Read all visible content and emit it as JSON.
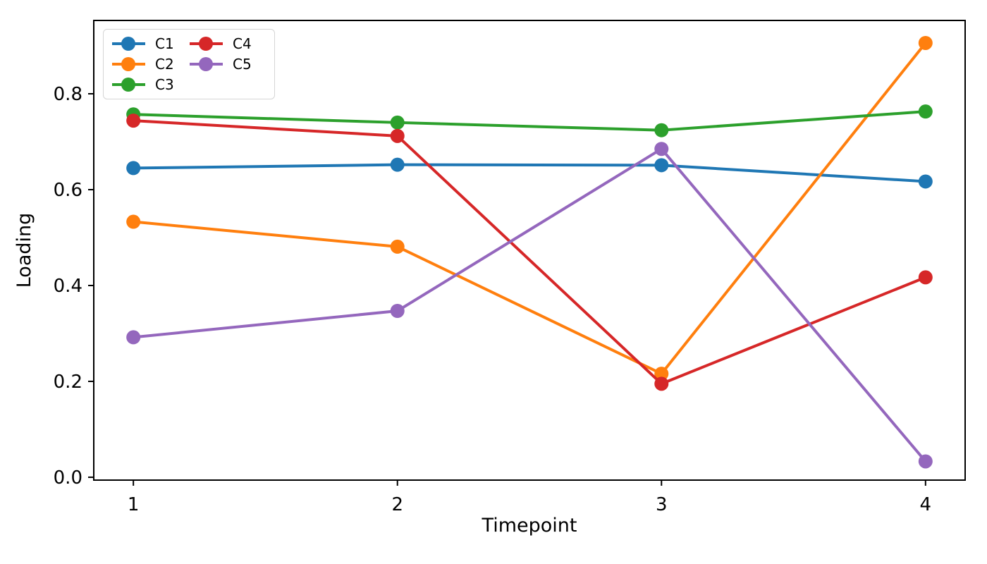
{
  "figure": {
    "background": "#ffffff",
    "text_color": "#000000",
    "spine_color": "#000000"
  },
  "chart_data": {
    "type": "line",
    "title": "",
    "xlabel": "Timepoint",
    "ylabel": "Loading",
    "x": [
      1,
      2,
      3,
      4
    ],
    "series": [
      {
        "name": "C1",
        "color": "#1f77b4",
        "values": [
          0.645,
          0.652,
          0.651,
          0.617
        ]
      },
      {
        "name": "C2",
        "color": "#ff7f0e",
        "values": [
          0.533,
          0.481,
          0.216,
          0.906
        ]
      },
      {
        "name": "C3",
        "color": "#2ca02c",
        "values": [
          0.757,
          0.74,
          0.724,
          0.763
        ]
      },
      {
        "name": "C4",
        "color": "#d62728",
        "values": [
          0.744,
          0.712,
          0.195,
          0.417
        ]
      },
      {
        "name": "C5",
        "color": "#9467bd",
        "values": [
          0.292,
          0.347,
          0.685,
          0.033
        ]
      }
    ],
    "xlim": [
      0.85,
      4.15
    ],
    "ylim": [
      -0.006,
      0.953
    ],
    "xticks": {
      "positions": [
        1,
        2,
        3,
        4
      ],
      "labels": [
        "1",
        "2",
        "3",
        "4"
      ]
    },
    "yticks": {
      "positions": [
        0.0,
        0.2,
        0.4,
        0.6,
        0.8
      ],
      "labels": [
        "0.0",
        "0.2",
        "0.4",
        "0.6",
        "0.8"
      ]
    },
    "grid": false,
    "legend": {
      "position": "top-left",
      "columns": 2,
      "order": "column-major",
      "entries": [
        "C1",
        "C2",
        "C3",
        "C4",
        "C5"
      ]
    },
    "marker": "circle",
    "marker_size": 20,
    "line_width": 4
  }
}
